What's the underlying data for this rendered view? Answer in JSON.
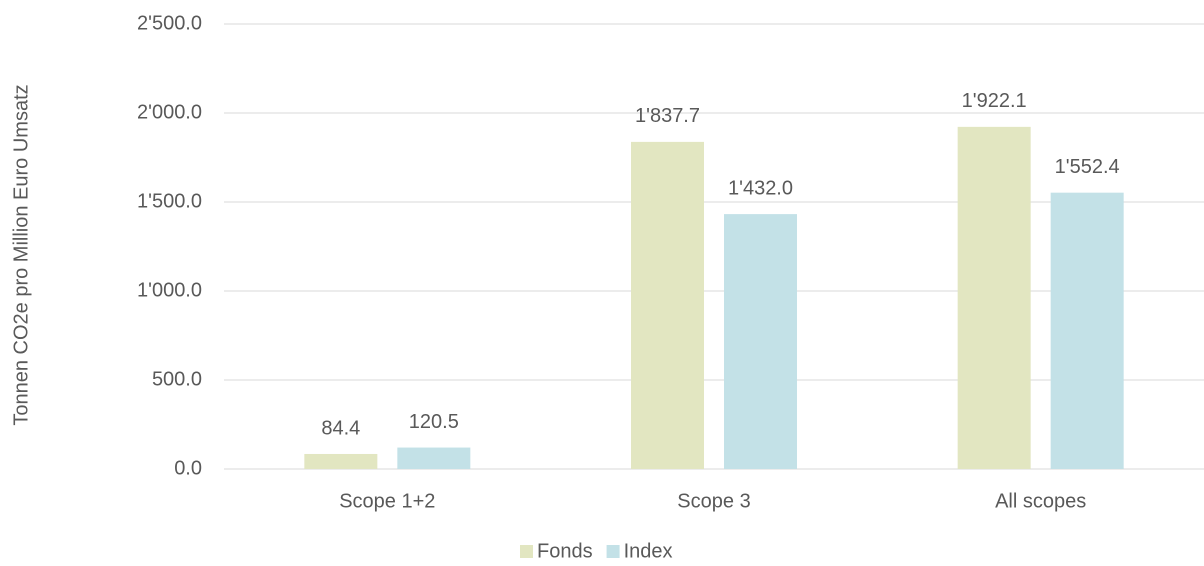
{
  "chart_data": {
    "type": "bar",
    "y_label": "Tonnen CO2e pro Million Euro Umsatz",
    "categories": [
      "Scope 1+2",
      "Scope 3",
      "All scopes"
    ],
    "series": [
      {
        "name": "Fonds",
        "color": "#e2e6c1",
        "values": [
          84.4,
          1837.7,
          1922.1
        ],
        "value_labels": [
          "84.4",
          "1'837.7",
          "1'922.1"
        ]
      },
      {
        "name": "Index",
        "color": "#c3e1e7",
        "values": [
          120.5,
          1432.0,
          1552.4
        ],
        "value_labels": [
          "120.5",
          "1'432.0",
          "1'552.4"
        ]
      }
    ],
    "ylim": [
      0,
      2500
    ],
    "yticks": [
      {
        "value": 0,
        "label": "0.0"
      },
      {
        "value": 500,
        "label": "500.0"
      },
      {
        "value": 1000,
        "label": "1'000.0"
      },
      {
        "value": 1500,
        "label": "1'500.0"
      },
      {
        "value": 2000,
        "label": "2'000.0"
      },
      {
        "value": 2500,
        "label": "2'500.0"
      }
    ],
    "grid": true,
    "legend": "bottom"
  }
}
